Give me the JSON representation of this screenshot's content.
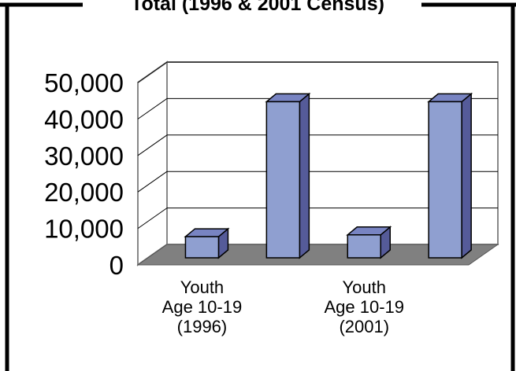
{
  "chart_data": {
    "type": "bar3d",
    "title": "Total (1996 & 2001 Census)",
    "categories": [
      "Youth\nAge 10-19\n(1996)",
      null,
      "Youth\nAge 10-19\n(2001)",
      null
    ],
    "values": [
      5800,
      42800,
      6300,
      42800
    ],
    "color": "#8f9fd0",
    "ylim": [
      0,
      50000
    ],
    "yticks": [
      0,
      {
        "value": 10000,
        "label": "10,000"
      },
      {
        "value": 20000,
        "label": "20,000"
      },
      {
        "value": 30000,
        "label": "30,000"
      },
      {
        "value": 40000,
        "label": "40,000"
      },
      {
        "value": 50000,
        "label": "50,000"
      }
    ],
    "grid": true
  }
}
